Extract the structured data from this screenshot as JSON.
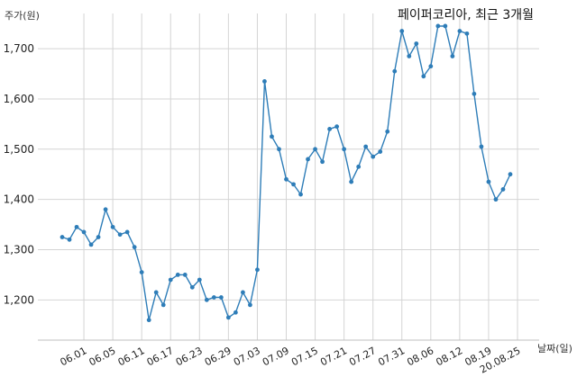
{
  "chart_data": {
    "type": "line",
    "title": "페이퍼코리아, 최근 3개월",
    "ylabel": "주가(원)",
    "xlabel": "날짜(일)",
    "ylim": [
      1120,
      1770
    ],
    "yticks": [
      1200,
      1300,
      1400,
      1500,
      1600,
      1700
    ],
    "ytick_labels": [
      "1,200",
      "1,300",
      "1,400",
      "1,500",
      "1,600",
      "1,700"
    ],
    "xtick_labels": [
      "06.01",
      "06.05",
      "06.11",
      "06.17",
      "06.23",
      "06.29",
      "07.03",
      "07.09",
      "07.15",
      "07.21",
      "07.27",
      "07.31",
      "08.06",
      "08.12",
      "08.19",
      "20.08.25"
    ],
    "xtick_index": [
      3,
      7,
      11,
      15,
      19,
      23,
      27,
      31,
      35,
      39,
      43,
      47,
      51,
      55,
      59,
      63
    ],
    "grid": true,
    "color": "#2e7db8",
    "series": [
      {
        "values": [
          1325,
          1320,
          1345,
          1335,
          1310,
          1325,
          1380,
          1345,
          1330,
          1335,
          1305,
          1255,
          1160,
          1215,
          1190,
          1240,
          1250,
          1250,
          1225,
          1240,
          1200,
          1205,
          1205,
          1165,
          1175,
          1215,
          1190,
          1260,
          1635,
          1525,
          1500,
          1440,
          1430,
          1410,
          1480,
          1500,
          1475,
          1540,
          1545,
          1500,
          1435,
          1465,
          1505,
          1485,
          1495,
          1535,
          1655,
          1735,
          1685,
          1710,
          1645,
          1665,
          1745,
          1745,
          1685,
          1735,
          1730,
          1610,
          1505,
          1435,
          1400,
          1420,
          1450
        ]
      }
    ]
  }
}
